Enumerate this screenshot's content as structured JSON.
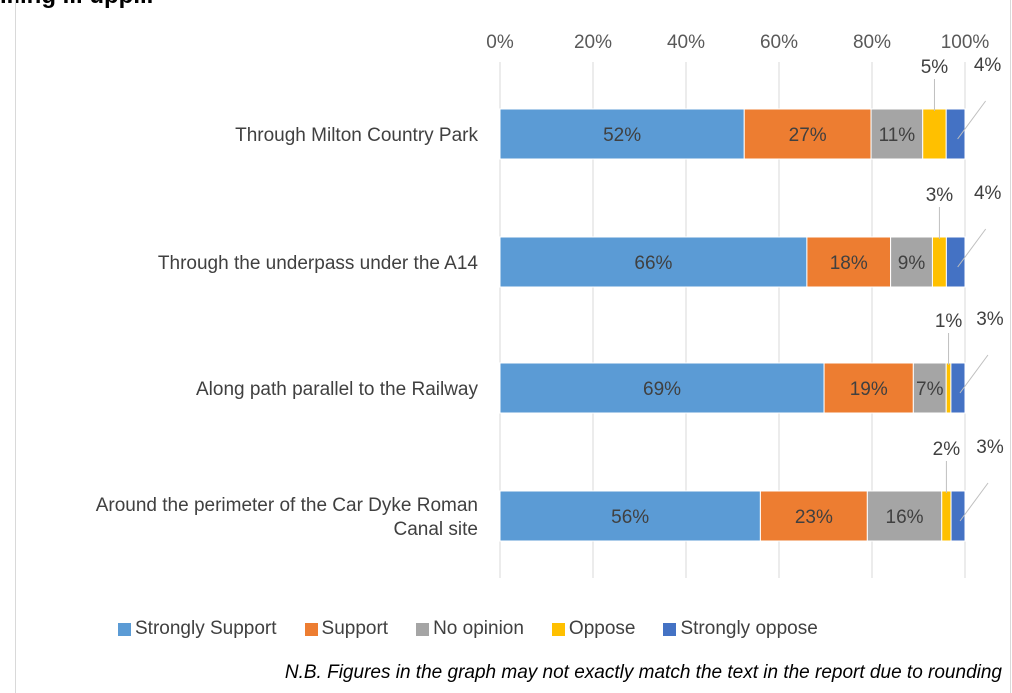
{
  "heading": "...ing ... upp...",
  "footnote": "N.B. Figures in the graph may not exactly match the text in the report due to rounding",
  "colors": {
    "strongly_support": "#5b9bd5",
    "support": "#ed7d31",
    "no_opinion": "#a5a5a5",
    "oppose": "#ffc000",
    "strongly_oppose": "#4472c4"
  },
  "chart_data": {
    "type": "bar",
    "orientation": "horizontal",
    "stacked": true,
    "percent_stacked": true,
    "categories": [
      "Through Milton Country Park",
      "Through the underpass under the A14",
      "Along path parallel to the Railway",
      "Around the perimeter of the Car Dyke Roman Canal site"
    ],
    "series": [
      {
        "name": "Strongly Support",
        "values": [
          52,
          66,
          69,
          56
        ]
      },
      {
        "name": "Support",
        "values": [
          27,
          18,
          19,
          23
        ]
      },
      {
        "name": "No opinion",
        "values": [
          11,
          9,
          7,
          16
        ]
      },
      {
        "name": "Oppose",
        "values": [
          5,
          3,
          1,
          2
        ]
      },
      {
        "name": "Strongly oppose",
        "values": [
          4,
          4,
          3,
          3
        ]
      }
    ],
    "xlim": [
      0,
      100
    ],
    "xticks": [
      "0%",
      "20%",
      "40%",
      "60%",
      "80%",
      "100%"
    ],
    "grid": true,
    "legend_position": "bottom"
  }
}
